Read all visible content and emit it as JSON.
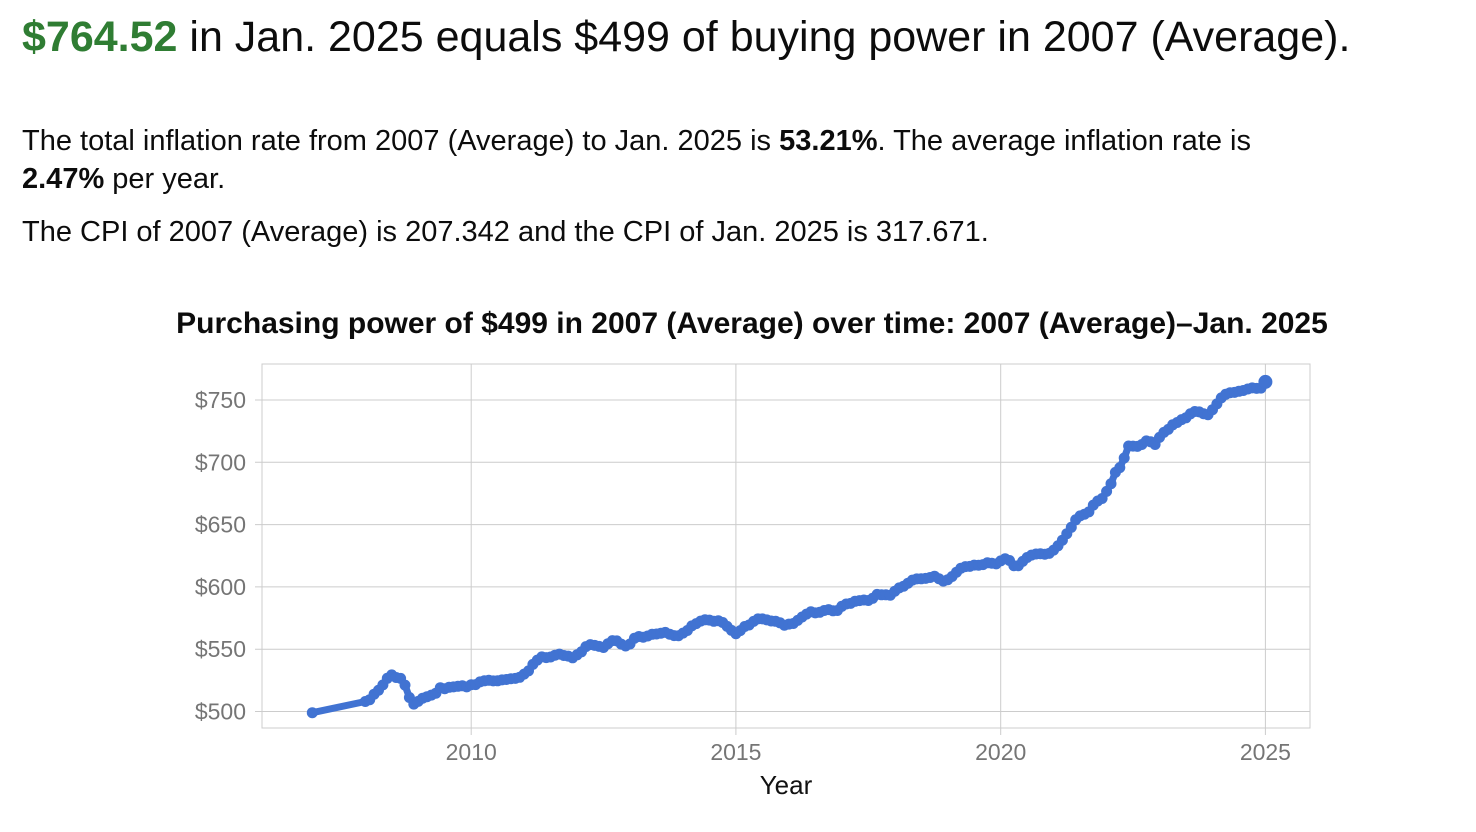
{
  "colors": {
    "headline_green": "#2f7d33",
    "line_blue": "#4173d2",
    "grid_gray": "#cccccc",
    "tick_label_gray": "#757575",
    "text_black": "#0c0c0c"
  },
  "headline": {
    "amount": "$764.52",
    "rest": " in Jan. 2025 equals $499 of buying power in 2007 (Average)."
  },
  "paragraphs": {
    "inflation_summary_segments": [
      {
        "text": "The total inflation rate from 2007 (Average) to Jan. 2025 is ",
        "bold": false
      },
      {
        "text": "53.21%",
        "bold": true
      },
      {
        "text": ". The average inflation rate is",
        "bold": false,
        "break_after": true
      },
      {
        "text": "2.47%",
        "bold": true
      },
      {
        "text": " per year.",
        "bold": false
      }
    ],
    "cpi_summary": "The CPI of 2007 (Average) is 207.342 and the CPI of Jan. 2025 is 317.671."
  },
  "chart": {
    "title": "Purchasing power of $499 in 2007 (Average) over time: 2007 (Average)–Jan. 2025"
  },
  "chart_data": {
    "type": "line",
    "title": "Purchasing power of $499 in 2007 (Average) over time: 2007 (Average)–Jan. 2025",
    "xlabel": "Year",
    "ylabel": "",
    "legend": "none",
    "grid": true,
    "series_name": "Purchasing power of $499",
    "line_color": "#4173d2",
    "grid_color": "#cccccc",
    "tick_label_color": "#757575",
    "axis_title_color": "#111111",
    "x_tick_values": [
      2010,
      2015,
      2020,
      2025
    ],
    "x_tick_labels": [
      "2010",
      "2015",
      "2020",
      "2025"
    ],
    "y_tick_values": [
      500,
      550,
      600,
      650,
      700,
      750
    ],
    "y_tick_labels": [
      "$500",
      "$550",
      "$600",
      "$650",
      "$700",
      "$750"
    ],
    "xlim": [
      2006.05,
      2025.84
    ],
    "ylim": [
      484,
      779
    ],
    "start_point": {
      "x": 2007,
      "label": "2007 (Average)",
      "value": 499.0
    },
    "end_point": {
      "x": 2025,
      "label": "Jan. 2025",
      "value": 764.52
    },
    "monthly_values": {
      "2008": [
        508.0,
        509.47,
        513.88,
        517.0,
        521.35,
        526.61,
        529.38,
        527.26,
        526.53,
        521.21,
        511.23,
        505.94
      ],
      "2009": [
        508.14,
        510.67,
        511.91,
        513.19,
        514.67,
        519.09,
        518.27,
        519.43,
        519.76,
        520.26,
        520.63,
        519.71
      ],
      "2010": [
        521.49,
        521.62,
        523.76,
        524.67,
        525.08,
        524.56,
        524.67,
        525.4,
        525.7,
        526.36,
        526.58,
        527.48
      ],
      "2011": [
        529.99,
        532.61,
        537.8,
        541.26,
        543.81,
        543.23,
        543.71,
        545.21,
        546.04,
        544.91,
        544.45,
        543.11
      ],
      "2012": [
        545.5,
        547.9,
        552.06,
        553.73,
        553.08,
        552.27,
        551.37,
        554.44,
        556.91,
        556.69,
        554.06,
        552.56
      ],
      "2013": [
        554.2,
        558.74,
        560.2,
        559.61,
        560.61,
        561.95,
        562.18,
        562.85,
        563.51,
        562.06,
        560.91,
        560.86
      ],
      "2014": [
        562.95,
        565.03,
        568.67,
        570.54,
        572.54,
        573.6,
        573.38,
        572.42,
        572.85,
        571.41,
        568.33,
        565.1
      ],
      "2015": [
        562.45,
        564.89,
        568.25,
        569.4,
        572.31,
        574.31,
        574.35,
        573.54,
        572.64,
        572.39,
        571.18,
        569.23
      ],
      "2016": [
        570.17,
        570.64,
        573.09,
        575.81,
        578.14,
        580.04,
        579.1,
        579.63,
        581.03,
        581.75,
        580.85,
        581.04
      ],
      "2017": [
        584.43,
        586.26,
        586.74,
        588.48,
        588.98,
        589.52,
        589.11,
        590.88,
        594.01,
        593.63,
        593.64,
        593.3
      ],
      "2018": [
        596.53,
        599.23,
        600.59,
        602.98,
        605.48,
        606.45,
        606.49,
        606.83,
        607.53,
        608.61,
        606.57,
        604.63
      ],
      "2019": [
        605.78,
        608.34,
        611.77,
        615.01,
        616.32,
        616.45,
        617.48,
        617.44,
        617.93,
        619.34,
        619.01,
        618.45
      ],
      "2020": [
        620.85,
        622.55,
        621.19,
        617.04,
        617.05,
        620.43,
        623.56,
        625.53,
        626.4,
        626.66,
        626.28,
        626.87
      ],
      "2021": [
        629.54,
        632.98,
        637.47,
        642.71,
        647.86,
        653.88,
        657.02,
        658.38,
        660.17,
        665.65,
        668.92,
        670.98
      ],
      "2022": [
        676.62,
        682.8,
        691.92,
        695.78,
        703.45,
        713.12,
        713.03,
        712.78,
        714.31,
        717.21,
        716.49,
        714.29
      ],
      "2023": [
        720.0,
        724.02,
        726.41,
        730.09,
        731.93,
        734.29,
        735.69,
        738.91,
        740.74,
        740.46,
        738.97,
        738.23
      ],
      "2024": [
        742.25,
        746.85,
        751.67,
        754.6,
        755.85,
        756.11,
        756.99,
        757.6,
        758.82,
        759.69,
        759.28,
        759.55
      ],
      "2025": [
        764.52
      ]
    }
  }
}
